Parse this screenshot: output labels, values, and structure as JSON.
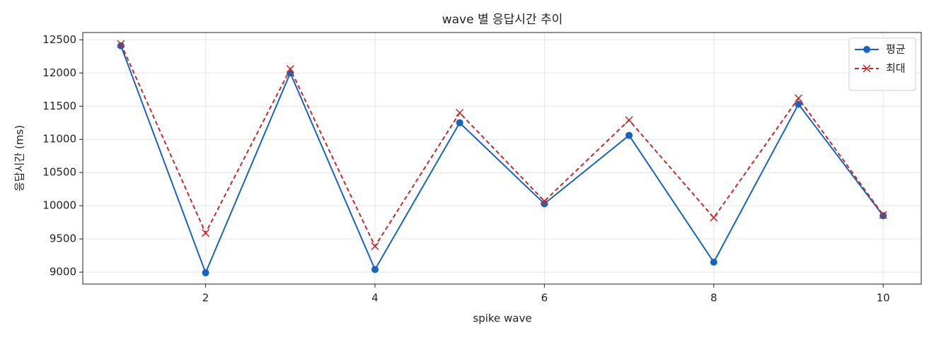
{
  "chart_data": {
    "type": "line",
    "title": "wave 별 응답시간 추이",
    "x_label": "spike wave",
    "y_label": "응답시간 (ms)",
    "x": [
      1,
      2,
      3,
      4,
      5,
      6,
      7,
      8,
      9,
      10
    ],
    "series": [
      {
        "name": "평균",
        "color": "#1565c0",
        "linestyle": "solid",
        "marker": "circle",
        "values": [
          12410,
          8990,
          12000,
          9040,
          11250,
          10030,
          11060,
          9150,
          11530,
          9850
        ]
      },
      {
        "name": "최대",
        "color": "#c62828",
        "linestyle": "dashed",
        "marker": "x",
        "values": [
          12440,
          9590,
          12060,
          9390,
          11400,
          10070,
          11290,
          9820,
          11620,
          9860
        ]
      }
    ],
    "xlim": [
      0.55,
      10.45
    ],
    "xticks": [
      2,
      4,
      6,
      8,
      10
    ],
    "ylim": [
      8820,
      12610
    ],
    "yticks": [
      9000,
      9500,
      10000,
      10500,
      11000,
      11500,
      12000,
      12500
    ],
    "grid": true,
    "legend": "upper right"
  }
}
